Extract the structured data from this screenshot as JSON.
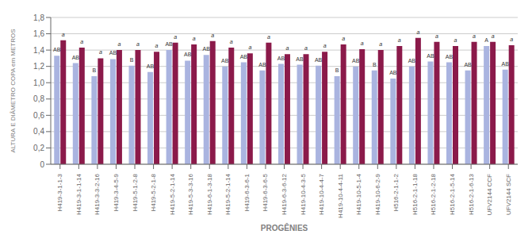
{
  "chart_data": {
    "type": "bar",
    "categories": [
      "H419-3-1-1-3",
      "H419-3-1-1-14",
      "H419-3-3-2-16",
      "H419-3-4-5-9",
      "H419-5-1-2-8",
      "H419-5-2-1-8",
      "H419-5-2-1-14",
      "H419-5-3-3-16",
      "H419-6-1-3-18",
      "H419-5-2-1-14",
      "H419-6-3-6-1",
      "H419-6-3-6-5",
      "H419-6-3-6-12",
      "H419-10-4-3-5",
      "H419-10-4-4-7",
      "H419-10-4-4-11",
      "H419-10-5-1-4",
      "H419-10-6-2-9",
      "H516-2-1-1-2",
      "H516-2-1-1-18",
      "H516-2-1-2-18",
      "H516-2-1-5-14",
      "H516-2-1-6-13",
      "UFV2144 CCF",
      "UFV2144 SCF"
    ],
    "series": [
      {
        "color": "#aab4e0",
        "values": [
          1.33,
          1.24,
          1.08,
          1.29,
          1.21,
          1.13,
          1.4,
          1.27,
          1.34,
          1.2,
          1.25,
          1.15,
          1.23,
          1.22,
          1.21,
          1.08,
          1.2,
          1.15,
          1.05,
          1.2,
          1.26,
          1.25,
          1.15,
          1.45,
          1.16
        ],
        "value_labels": [
          "AB",
          "AB",
          "B",
          "AB",
          "B",
          "AB",
          "AB",
          "AB",
          "AB",
          "AB",
          "AB",
          "AB",
          "AB",
          "AB",
          "AB",
          "B",
          "AB",
          "B",
          "AB",
          "AB",
          "AB",
          "AB",
          "AB",
          "A",
          "AB"
        ]
      },
      {
        "color": "#8b1a4a",
        "values": [
          1.52,
          1.43,
          1.3,
          1.4,
          1.4,
          1.38,
          1.49,
          1.47,
          1.51,
          1.43,
          1.36,
          1.49,
          1.35,
          1.35,
          1.38,
          1.47,
          1.41,
          1.4,
          1.45,
          1.55,
          1.5,
          1.45,
          1.5,
          1.5,
          1.46
        ],
        "value_labels": [
          "a",
          "a",
          "a",
          "a",
          "a",
          "a",
          "a",
          "a",
          "a",
          "a",
          "a",
          "a",
          "a",
          "a",
          "a",
          "a",
          "a",
          "a",
          "a",
          "a",
          "a",
          "a",
          "a",
          "a",
          "a"
        ]
      }
    ],
    "xlabel": "PROGÊNIES",
    "ylabel": "ALTURA E DIÂMETRO COPA em METROS",
    "ylim": [
      0,
      1.8
    ],
    "yticks": [
      0,
      {
        "value": 0.2,
        "label": "0,2"
      },
      {
        "value": 0.4,
        "label": "0,4"
      },
      {
        "value": 0.6,
        "label": "0,6"
      },
      {
        "value": 0.8,
        "label": "0,8"
      },
      {
        "value": 1.0,
        "label": "1,0"
      },
      {
        "value": 1.2,
        "label": "1,2"
      },
      {
        "value": 1.4,
        "label": "1,4"
      },
      {
        "value": 1.6,
        "label": "1,6"
      },
      {
        "value": 1.8,
        "label": "1,8"
      }
    ],
    "grid": true
  }
}
